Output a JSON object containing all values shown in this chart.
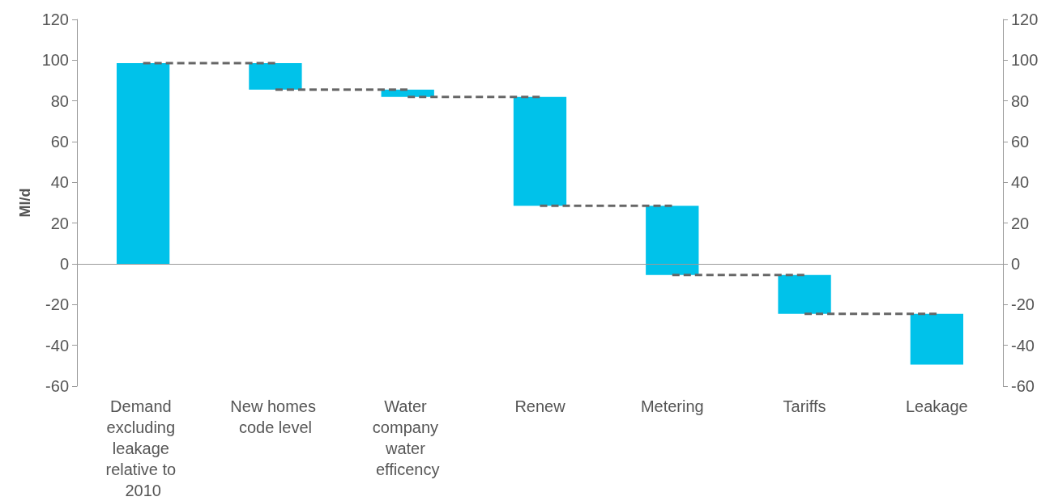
{
  "chart_data": {
    "type": "bar",
    "ylabel": "Ml/d",
    "categories": [
      "Demand excluding leakage relative to 2010",
      "New homes code level",
      "Water company water efficency",
      "Renew",
      "Metering",
      "Tariffs",
      "Leakage"
    ],
    "values": [
      98.5,
      -13,
      -3.5,
      -53.5,
      -34,
      -19,
      -25
    ],
    "base": [
      0,
      98.5,
      85.5,
      82,
      28.5,
      -5.5,
      -24.5
    ],
    "color": "#00c2ea",
    "series": [
      {
        "type": "line",
        "color": "#666666",
        "line_style": "dashed",
        "marker": "none",
        "x": [
          "Demand excluding leakage relative to 2010",
          "New homes code level"
        ],
        "values": [
          98.5,
          98.5
        ]
      },
      {
        "type": "line",
        "color": "#666666",
        "line_style": "dashed",
        "marker": "none",
        "x": [
          "New homes code level",
          "Water company water efficency"
        ],
        "values": [
          85.5,
          85.5
        ]
      },
      {
        "type": "line",
        "color": "#666666",
        "line_style": "dashed",
        "marker": "none",
        "x": [
          "Water company water efficency",
          "Renew"
        ],
        "values": [
          82,
          82
        ]
      },
      {
        "type": "line",
        "color": "#666666",
        "line_style": "dashed",
        "marker": "none",
        "x": [
          "Renew",
          "Metering"
        ],
        "values": [
          28.5,
          28.5
        ]
      },
      {
        "type": "line",
        "color": "#666666",
        "line_style": "dashed",
        "marker": "none",
        "x": [
          "Metering",
          "Tariffs"
        ],
        "values": [
          -5.5,
          -5.5
        ]
      },
      {
        "type": "line",
        "color": "#666666",
        "line_style": "dashed",
        "marker": "none",
        "x": [
          "Tariffs",
          "Leakage"
        ],
        "values": [
          -24.5,
          -24.5
        ]
      }
    ],
    "ylim": [
      -60,
      120
    ],
    "yticks": [
      -60,
      -40,
      -20,
      0,
      20,
      40,
      60,
      80,
      100,
      120
    ],
    "ref_lines": [
      {
        "axis": "y",
        "value": 0,
        "color": "#9a9a9a"
      }
    ],
    "y2lim": [
      -60,
      120
    ],
    "y2ticks": [
      -60,
      -40,
      -20,
      0,
      20,
      40,
      60,
      80,
      100,
      120
    ]
  }
}
